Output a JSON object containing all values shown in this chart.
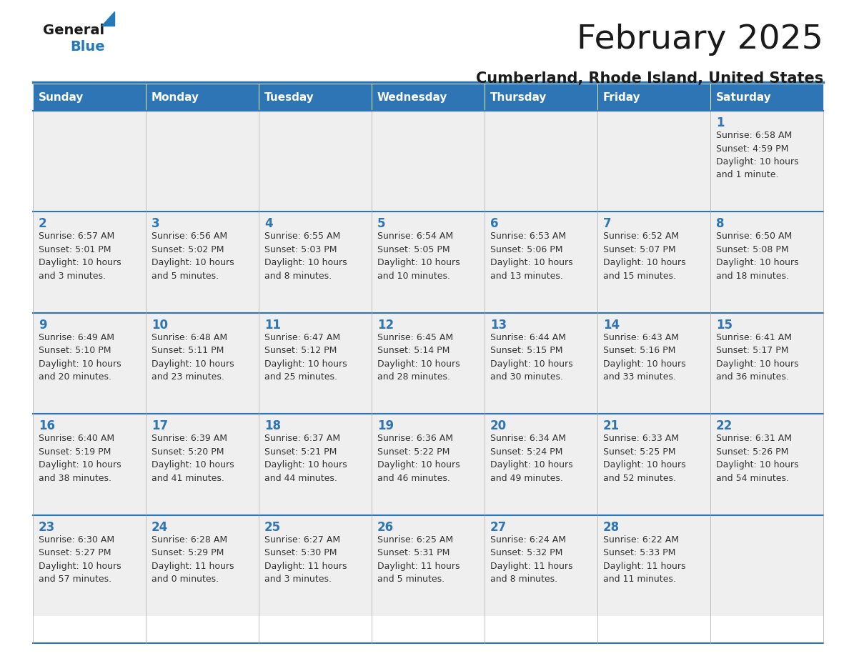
{
  "title": "February 2025",
  "subtitle": "Cumberland, Rhode Island, United States",
  "header_bg": "#2E75B6",
  "header_text_color": "#FFFFFF",
  "cell_bg_light": "#EFEFEF",
  "cell_bg_white": "#FFFFFF",
  "border_color": "#2E75B6",
  "text_color": "#333333",
  "day_number_color": "#2E75B6",
  "days_of_week": [
    "Sunday",
    "Monday",
    "Tuesday",
    "Wednesday",
    "Thursday",
    "Friday",
    "Saturday"
  ],
  "weeks": [
    [
      {
        "day": null,
        "info": null
      },
      {
        "day": null,
        "info": null
      },
      {
        "day": null,
        "info": null
      },
      {
        "day": null,
        "info": null
      },
      {
        "day": null,
        "info": null
      },
      {
        "day": null,
        "info": null
      },
      {
        "day": 1,
        "info": "Sunrise: 6:58 AM\nSunset: 4:59 PM\nDaylight: 10 hours\nand 1 minute."
      }
    ],
    [
      {
        "day": 2,
        "info": "Sunrise: 6:57 AM\nSunset: 5:01 PM\nDaylight: 10 hours\nand 3 minutes."
      },
      {
        "day": 3,
        "info": "Sunrise: 6:56 AM\nSunset: 5:02 PM\nDaylight: 10 hours\nand 5 minutes."
      },
      {
        "day": 4,
        "info": "Sunrise: 6:55 AM\nSunset: 5:03 PM\nDaylight: 10 hours\nand 8 minutes."
      },
      {
        "day": 5,
        "info": "Sunrise: 6:54 AM\nSunset: 5:05 PM\nDaylight: 10 hours\nand 10 minutes."
      },
      {
        "day": 6,
        "info": "Sunrise: 6:53 AM\nSunset: 5:06 PM\nDaylight: 10 hours\nand 13 minutes."
      },
      {
        "day": 7,
        "info": "Sunrise: 6:52 AM\nSunset: 5:07 PM\nDaylight: 10 hours\nand 15 minutes."
      },
      {
        "day": 8,
        "info": "Sunrise: 6:50 AM\nSunset: 5:08 PM\nDaylight: 10 hours\nand 18 minutes."
      }
    ],
    [
      {
        "day": 9,
        "info": "Sunrise: 6:49 AM\nSunset: 5:10 PM\nDaylight: 10 hours\nand 20 minutes."
      },
      {
        "day": 10,
        "info": "Sunrise: 6:48 AM\nSunset: 5:11 PM\nDaylight: 10 hours\nand 23 minutes."
      },
      {
        "day": 11,
        "info": "Sunrise: 6:47 AM\nSunset: 5:12 PM\nDaylight: 10 hours\nand 25 minutes."
      },
      {
        "day": 12,
        "info": "Sunrise: 6:45 AM\nSunset: 5:14 PM\nDaylight: 10 hours\nand 28 minutes."
      },
      {
        "day": 13,
        "info": "Sunrise: 6:44 AM\nSunset: 5:15 PM\nDaylight: 10 hours\nand 30 minutes."
      },
      {
        "day": 14,
        "info": "Sunrise: 6:43 AM\nSunset: 5:16 PM\nDaylight: 10 hours\nand 33 minutes."
      },
      {
        "day": 15,
        "info": "Sunrise: 6:41 AM\nSunset: 5:17 PM\nDaylight: 10 hours\nand 36 minutes."
      }
    ],
    [
      {
        "day": 16,
        "info": "Sunrise: 6:40 AM\nSunset: 5:19 PM\nDaylight: 10 hours\nand 38 minutes."
      },
      {
        "day": 17,
        "info": "Sunrise: 6:39 AM\nSunset: 5:20 PM\nDaylight: 10 hours\nand 41 minutes."
      },
      {
        "day": 18,
        "info": "Sunrise: 6:37 AM\nSunset: 5:21 PM\nDaylight: 10 hours\nand 44 minutes."
      },
      {
        "day": 19,
        "info": "Sunrise: 6:36 AM\nSunset: 5:22 PM\nDaylight: 10 hours\nand 46 minutes."
      },
      {
        "day": 20,
        "info": "Sunrise: 6:34 AM\nSunset: 5:24 PM\nDaylight: 10 hours\nand 49 minutes."
      },
      {
        "day": 21,
        "info": "Sunrise: 6:33 AM\nSunset: 5:25 PM\nDaylight: 10 hours\nand 52 minutes."
      },
      {
        "day": 22,
        "info": "Sunrise: 6:31 AM\nSunset: 5:26 PM\nDaylight: 10 hours\nand 54 minutes."
      }
    ],
    [
      {
        "day": 23,
        "info": "Sunrise: 6:30 AM\nSunset: 5:27 PM\nDaylight: 10 hours\nand 57 minutes."
      },
      {
        "day": 24,
        "info": "Sunrise: 6:28 AM\nSunset: 5:29 PM\nDaylight: 11 hours\nand 0 minutes."
      },
      {
        "day": 25,
        "info": "Sunrise: 6:27 AM\nSunset: 5:30 PM\nDaylight: 11 hours\nand 3 minutes."
      },
      {
        "day": 26,
        "info": "Sunrise: 6:25 AM\nSunset: 5:31 PM\nDaylight: 11 hours\nand 5 minutes."
      },
      {
        "day": 27,
        "info": "Sunrise: 6:24 AM\nSunset: 5:32 PM\nDaylight: 11 hours\nand 8 minutes."
      },
      {
        "day": 28,
        "info": "Sunrise: 6:22 AM\nSunset: 5:33 PM\nDaylight: 11 hours\nand 11 minutes."
      },
      {
        "day": null,
        "info": null
      }
    ]
  ],
  "logo_text_general": "General",
  "logo_text_blue": "Blue",
  "logo_color_general": "#1a1a1a",
  "logo_color_blue": "#2479BB",
  "logo_triangle_color": "#2479BB",
  "title_fontsize": 34,
  "subtitle_fontsize": 15,
  "header_fontsize": 11,
  "day_num_fontsize": 12,
  "info_fontsize": 9
}
